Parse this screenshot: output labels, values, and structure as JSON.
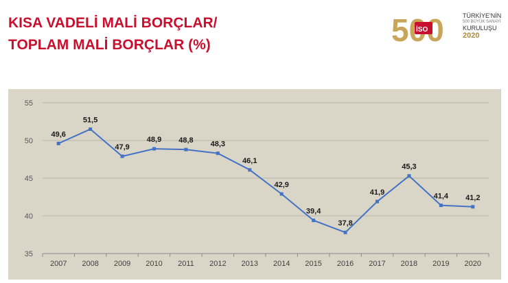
{
  "header": {
    "title_line1": "KISA VADELİ MALİ BORÇLAR/",
    "title_line2": "TOPLAM MALİ BORÇLAR (%)"
  },
  "logo": {
    "number": "500",
    "badge": "İSO",
    "line1": "TÜRKİYE'NİN",
    "line2": "500 BÜYÜK SANAYİ",
    "line3": "KURULUŞU",
    "line4": "2020",
    "gold": "#c9a55a",
    "red": "#c8102e"
  },
  "colors": {
    "title": "#c8102e",
    "panel_bg": "#d9d5c7",
    "line": "#4472c4",
    "grid": "#b9b5a7"
  },
  "chart_data": {
    "type": "line",
    "categories": [
      "2007",
      "2008",
      "2009",
      "2010",
      "2011",
      "2012",
      "2013",
      "2014",
      "2015",
      "2016",
      "2017",
      "2018",
      "2019",
      "2020"
    ],
    "series": [
      {
        "values": [
          49.6,
          51.5,
          47.9,
          48.9,
          48.8,
          48.3,
          46.1,
          42.9,
          39.4,
          37.8,
          41.9,
          45.3,
          41.4,
          41.2
        ]
      }
    ],
    "data_labels": [
      "49,6",
      "51,5",
      "47,9",
      "48,9",
      "48,8",
      "48,3",
      "46,1",
      "42,9",
      "39,4",
      "37,8",
      "41,9",
      "45,3",
      "41,4",
      "41,2"
    ],
    "y_ticks": [
      "35",
      "40",
      "45",
      "50",
      "55"
    ],
    "ylim": [
      35,
      55
    ],
    "grid": true
  }
}
